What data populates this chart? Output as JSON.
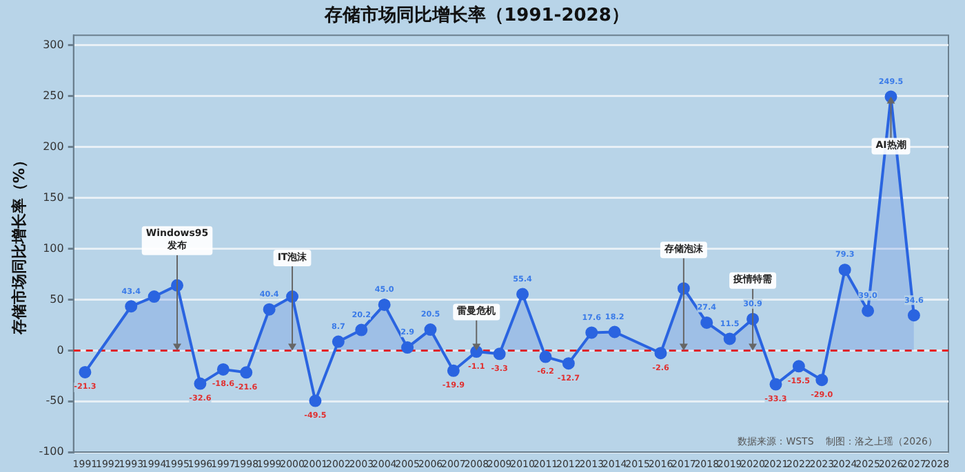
{
  "chart_data": {
    "type": "line",
    "title": "存储市场同比增长率（1991-2028）",
    "ylabel": "存储市场同比增长率（%）",
    "categories": [
      "1991",
      "1992",
      "1993",
      "1994",
      "1995",
      "1996",
      "1997",
      "1998",
      "1999",
      "2000",
      "2001",
      "2002",
      "2003",
      "2004",
      "2005",
      "2006",
      "2007",
      "2008",
      "2009",
      "2010",
      "2011",
      "2012",
      "2013",
      "2014",
      "2015",
      "2016",
      "2017",
      "2018",
      "2019",
      "2020",
      "2021",
      "2022",
      "2023",
      "2024",
      "2025",
      "2026",
      "2027",
      "2028"
    ],
    "series": [
      {
        "color": "#2a64e0",
        "values": [
          -21.3,
          null,
          43.4,
          53,
          64,
          -32.6,
          -18.6,
          -21.6,
          40.4,
          53,
          -49.5,
          8.7,
          20.2,
          45.0,
          2.9,
          20.5,
          -19.9,
          -1.1,
          -3.3,
          55.4,
          -6.2,
          -12.7,
          17.6,
          18.2,
          null,
          -2.6,
          61,
          27.4,
          11.5,
          30.9,
          -33.3,
          -15.5,
          -29.0,
          79.3,
          39.0,
          249.5,
          34.6,
          null
        ],
        "value_labels": [
          "-21.3",
          null,
          "43.4",
          null,
          null,
          "-32.6",
          "-18.6",
          "-21.6",
          "40.4",
          null,
          "-49.5",
          "8.7",
          "20.2",
          "45.0",
          "2.9",
          "20.5",
          "-19.9",
          "-1.1",
          "-3.3",
          "55.4",
          "-6.2",
          "-12.7",
          "17.6",
          "18.2",
          null,
          "-2.6",
          null,
          "27.4",
          "11.5",
          "30.9",
          "-33.3",
          "-15.5",
          "-29.0",
          "79.3",
          "39.0",
          "249.5",
          "34.6",
          null
        ]
      }
    ],
    "ylim": [
      -100,
      310
    ],
    "yticks": [
      -100,
      -50,
      0,
      50,
      100,
      150,
      200,
      250,
      300
    ],
    "grid": "y",
    "marker": "circle",
    "legend": false,
    "ref_lines": [
      {
        "axis": "y",
        "value": 0,
        "color": "#e82020",
        "line_style": "dashed"
      }
    ],
    "annotations": [
      {
        "text": "Windows95\n发布",
        "x": "1995",
        "y": 0
      },
      {
        "text": "IT泡沫",
        "x": "2000",
        "y": 0
      },
      {
        "text": "雷曼危机",
        "x": "2008",
        "y": 0
      },
      {
        "text": "存储泡沫",
        "x": "2017",
        "y": 0
      },
      {
        "text": "疫情特需",
        "x": "2020",
        "y": 0
      },
      {
        "text": "AI热潮",
        "x": "2026",
        "y": 249.5
      },
      "数据来源：WSTS    制图：洛之上瑶（2026）"
    ]
  }
}
